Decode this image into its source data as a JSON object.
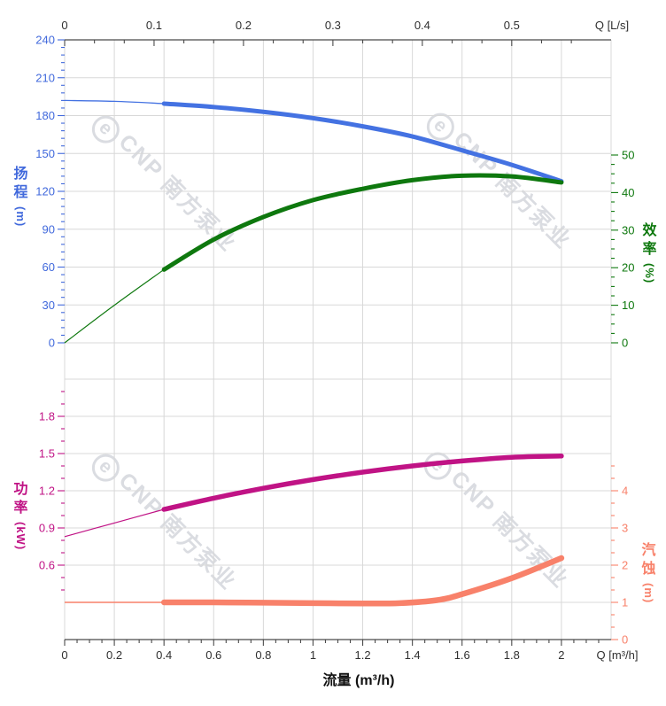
{
  "watermark": {
    "logo_letter": "e",
    "text": "CNP 南方泵业"
  },
  "axes": {
    "top_x": {
      "label": "Q [L/s]",
      "color": "#2f2f2f",
      "ticks": [
        [
          "0",
          0
        ],
        [
          "0.1",
          0.1
        ],
        [
          "0.2",
          0.2
        ],
        [
          "0.3",
          0.3
        ],
        [
          "0.4",
          0.4
        ],
        [
          "0.5",
          0.5
        ]
      ]
    },
    "bottom_x": {
      "label": "Q [m³/h]",
      "color": "#2f2f2f",
      "title": "流量 (m³/h)",
      "ticks": [
        [
          "0",
          0
        ],
        [
          "0.2",
          0.2
        ],
        [
          "0.4",
          0.4
        ],
        [
          "0.6",
          0.6
        ],
        [
          "0.8",
          0.8
        ],
        [
          "1",
          1
        ],
        [
          "1.2",
          1.2
        ],
        [
          "1.4",
          1.4
        ],
        [
          "1.6",
          1.6
        ],
        [
          "1.8",
          1.8
        ],
        [
          "2",
          2
        ]
      ]
    },
    "head": {
      "title_chars": [
        "扬",
        "程"
      ],
      "unit": "(m)",
      "color": "#4169dc",
      "ticks": [
        [
          "0",
          0
        ],
        [
          "30",
          30
        ],
        [
          "60",
          60
        ],
        [
          "90",
          90
        ],
        [
          "120",
          120
        ],
        [
          "150",
          150
        ],
        [
          "180",
          180
        ],
        [
          "210",
          210
        ],
        [
          "240",
          240
        ]
      ]
    },
    "eff": {
      "title_chars": [
        "效",
        "率"
      ],
      "unit": "(%)",
      "color": "#0e780e",
      "ticks": [
        [
          "0",
          0
        ],
        [
          "10",
          10
        ],
        [
          "20",
          20
        ],
        [
          "30",
          30
        ],
        [
          "40",
          40
        ],
        [
          "50",
          50
        ]
      ]
    },
    "power": {
      "title_chars": [
        "功",
        "率"
      ],
      "unit": "(kW)",
      "color": "#c01385",
      "ticks": [
        [
          "0.6",
          0.6
        ],
        [
          "0.9",
          0.9
        ],
        [
          "1.2",
          1.2
        ],
        [
          "1.5",
          1.5
        ],
        [
          "1.8",
          1.8
        ]
      ]
    },
    "npsh": {
      "title_chars": [
        "汽",
        "蚀"
      ],
      "unit": "(m)",
      "color": "#f8816a",
      "ticks": [
        [
          "0",
          0
        ],
        [
          "1",
          1
        ],
        [
          "2",
          2
        ],
        [
          "3",
          3
        ],
        [
          "4",
          4
        ]
      ]
    }
  },
  "chart_data": [
    {
      "type": "line",
      "title": "",
      "xlabel": "流量 (m³/h)",
      "x_axis_bottom": {
        "label": "Q [m³/h]",
        "ticks": [
          0,
          0.2,
          0.4,
          0.6,
          0.8,
          1,
          1.2,
          1.4,
          1.6,
          1.8,
          2
        ],
        "xlim": [
          0,
          2.2
        ]
      },
      "x_axis_top": {
        "label": "Q [L/s]",
        "ticks": [
          0,
          0.1,
          0.2,
          0.3,
          0.4,
          0.5
        ]
      },
      "grid": true,
      "legend_position": "none",
      "series": [
        {
          "id": "head",
          "name": "扬程",
          "unit": "m",
          "axis": "head",
          "ylabel": "扬程 (m)",
          "ylim": [
            0,
            240
          ],
          "color": "#4472e2",
          "thin_width": 1.3,
          "width": 5,
          "bold_from": 0.4,
          "points": [
            [
              0,
              192
            ],
            [
              0.2,
              191.3
            ],
            [
              0.4,
              189.5
            ],
            [
              0.6,
              186.8
            ],
            [
              0.8,
              183
            ],
            [
              1,
              178
            ],
            [
              1.2,
              171.5
            ],
            [
              1.4,
              163.5
            ],
            [
              1.6,
              152.5
            ],
            [
              1.8,
              141
            ],
            [
              2,
              128
            ]
          ]
        },
        {
          "id": "efficiency",
          "name": "效率",
          "unit": "%",
          "axis": "eff",
          "ylabel": "效率 (%)",
          "ylim": [
            0,
            80.7
          ],
          "color": "#0e780e",
          "thin_width": 1.2,
          "width": 5,
          "bold_from": 0.4,
          "points": [
            [
              0,
              0
            ],
            [
              0.2,
              10
            ],
            [
              0.4,
              19.5
            ],
            [
              0.6,
              27.5
            ],
            [
              0.8,
              33.5
            ],
            [
              1,
              38
            ],
            [
              1.2,
              41
            ],
            [
              1.4,
              43.3
            ],
            [
              1.6,
              44.5
            ],
            [
              1.8,
              44.3
            ],
            [
              2,
              42.7
            ]
          ]
        }
      ]
    },
    {
      "type": "line",
      "title": "",
      "xlabel": "流量 (m³/h)",
      "grid": true,
      "legend_position": "none",
      "series": [
        {
          "id": "power",
          "name": "功率",
          "unit": "kW",
          "axis": "power",
          "ylabel": "功率 (kW)",
          "ylim": [
            0,
            2.12
          ],
          "color": "#c01385",
          "thin_width": 1.2,
          "width": 5.5,
          "bold_from": 0.4,
          "points": [
            [
              0,
              0.83
            ],
            [
              0.2,
              0.94
            ],
            [
              0.4,
              1.05
            ],
            [
              0.6,
              1.14
            ],
            [
              0.8,
              1.22
            ],
            [
              1,
              1.29
            ],
            [
              1.2,
              1.35
            ],
            [
              1.4,
              1.4
            ],
            [
              1.6,
              1.44
            ],
            [
              1.8,
              1.47
            ],
            [
              2,
              1.48
            ]
          ]
        },
        {
          "id": "npsh",
          "name": "汽蚀",
          "unit": "m",
          "axis": "npsh",
          "ylabel": "汽蚀 (m)",
          "ylim": [
            0,
            7.07
          ],
          "color": "#f8816a",
          "thin_width": 1.4,
          "width": 6.5,
          "bold_from": 0.4,
          "points": [
            [
              0,
              1
            ],
            [
              0.2,
              1
            ],
            [
              0.4,
              1
            ],
            [
              0.6,
              1
            ],
            [
              0.8,
              0.99
            ],
            [
              1,
              0.98
            ],
            [
              1.2,
              0.97
            ],
            [
              1.35,
              0.98
            ],
            [
              1.5,
              1.06
            ],
            [
              1.6,
              1.22
            ],
            [
              1.8,
              1.65
            ],
            [
              2,
              2.19
            ]
          ]
        }
      ]
    }
  ]
}
